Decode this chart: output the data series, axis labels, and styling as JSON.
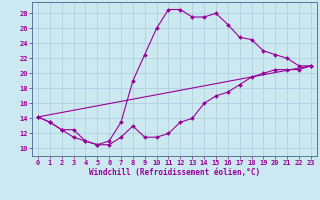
{
  "xlabel": "Windchill (Refroidissement éolien,°C)",
  "bg_color": "#cce8f0",
  "line_color": "#990099",
  "grid_color": "#aaccdd",
  "xlim_min": -0.5,
  "xlim_max": 23.5,
  "ylim_min": 9.0,
  "ylim_max": 29.5,
  "xticks": [
    0,
    1,
    2,
    3,
    4,
    5,
    6,
    7,
    8,
    9,
    10,
    11,
    12,
    13,
    14,
    15,
    16,
    17,
    18,
    19,
    20,
    21,
    22,
    23
  ],
  "yticks": [
    10,
    12,
    14,
    16,
    18,
    20,
    22,
    24,
    26,
    28
  ],
  "line1_x": [
    0,
    1,
    2,
    3,
    4,
    5,
    6,
    7,
    8,
    9,
    10,
    11,
    12,
    13,
    14,
    15,
    16,
    17,
    18,
    19,
    20,
    21,
    22,
    23
  ],
  "line1_y": [
    14.2,
    13.5,
    12.5,
    11.5,
    11.0,
    10.5,
    11.0,
    13.5,
    19.0,
    22.5,
    26.0,
    28.5,
    28.5,
    27.5,
    27.5,
    28.0,
    26.5,
    24.8,
    24.5,
    23.0,
    22.5,
    22.0,
    21.0,
    21.0
  ],
  "line2_x": [
    0,
    1,
    2,
    3,
    4,
    5,
    6,
    7,
    8,
    9,
    10,
    11,
    12,
    13,
    14,
    15,
    16,
    17,
    18,
    19,
    20,
    21,
    22,
    23
  ],
  "line2_y": [
    14.2,
    13.5,
    12.5,
    12.5,
    11.0,
    10.5,
    10.5,
    11.5,
    13.0,
    11.5,
    11.5,
    12.0,
    13.5,
    14.0,
    16.0,
    17.0,
    17.5,
    18.5,
    19.5,
    20.0,
    20.5,
    20.5,
    20.5,
    21.0
  ],
  "line3_x": [
    0,
    23
  ],
  "line3_y": [
    14.2,
    21.0
  ],
  "line4_x": [
    0,
    23
  ],
  "line4_y": [
    14.2,
    21.0
  ],
  "tick_fontsize": 5.0,
  "label_fontsize": 5.5,
  "linewidth": 0.8,
  "markersize": 2.0
}
